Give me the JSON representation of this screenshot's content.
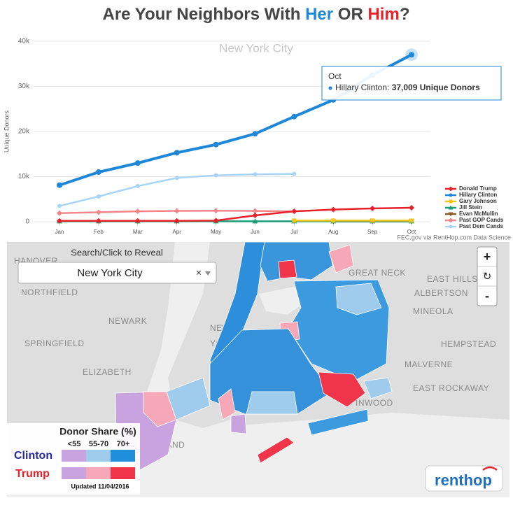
{
  "chart_data": {
    "type": "line",
    "title_parts": [
      "Are Your Neighbors With",
      "Her",
      "OR",
      "Him",
      "?"
    ],
    "subtitle": "New York City",
    "y_label": "Unique Donors",
    "source": "FEC.gov via RentHop.com Data Science",
    "categories": [
      "Jan",
      "Feb",
      "Mar",
      "Apr",
      "May",
      "Jun",
      "Jul",
      "Aug",
      "Sep",
      "Oct"
    ],
    "ylim": [
      0,
      40000
    ],
    "yticks": [
      0,
      {
        "value": 10000,
        "label": "10k"
      },
      {
        "value": 20000,
        "label": "20k"
      },
      {
        "value": 30000,
        "label": "30k"
      },
      {
        "value": 40000,
        "label": "40k"
      }
    ],
    "grid": true,
    "series": [
      {
        "name": "Donald Trump",
        "color": "#e8202a",
        "marker": "diamond",
        "values": [
          200,
          200,
          200,
          200,
          250,
          1400,
          2300,
          2700,
          2950,
          3100
        ]
      },
      {
        "name": "Hillary Clinton",
        "color": "#1f87d8",
        "marker": "circle",
        "values": [
          8100,
          11000,
          13000,
          15300,
          17100,
          19500,
          23300,
          27000,
          32500,
          37009
        ]
      },
      {
        "name": "Gary Johnson",
        "color": "#f5c518",
        "marker": "square",
        "values": [
          null,
          null,
          null,
          null,
          null,
          null,
          250,
          250,
          250,
          250
        ]
      },
      {
        "name": "Jill Stein",
        "color": "#1a9e77",
        "marker": "triangle",
        "values": [
          100,
          100,
          100,
          100,
          100,
          100,
          100,
          100,
          100,
          100
        ]
      },
      {
        "name": "Evan McMullin",
        "color": "#8b5a2b",
        "marker": "triangle-down",
        "values": [
          null,
          null,
          null,
          null,
          null,
          null,
          null,
          50,
          50,
          50
        ]
      },
      {
        "name": "Past GOP Cands",
        "color": "#f4868a",
        "marker": "diamond",
        "values": [
          1900,
          2100,
          2300,
          2400,
          2450,
          2400,
          2300,
          null,
          null,
          null
        ]
      },
      {
        "name": "Past Dem Cands",
        "color": "#a8d4f5",
        "marker": "circle",
        "values": [
          3500,
          5600,
          7900,
          9700,
          10300,
          10500,
          10600,
          null,
          null,
          null
        ]
      }
    ],
    "tooltip": {
      "header": "Oct",
      "label": "Hillary Clinton:",
      "value": "37,009 Unique Donors"
    }
  },
  "map": {
    "search_label": "Search/Click to Reveal",
    "search_value": "New York City",
    "clear": "×",
    "zoom_in": "+",
    "reset": "↻",
    "zoom_out": "-",
    "place_labels": [
      "HANOVER",
      "NORTHFIELD",
      "NEWARK",
      "SPRINGFIELD",
      "ELIZABETH",
      "NEW",
      "YORK",
      "GREAT NECK",
      "EAST HILLS",
      "ALBERTSON",
      "MINEOLA",
      "HEMPSTEAD",
      "MALVERNE",
      "EAST ROCKAWAY",
      "INWOOD",
      "N ISLAND"
    ],
    "legend": {
      "title": "Donor Share (%)",
      "columns": [
        "<55",
        "55-70",
        "70+"
      ],
      "rows": [
        "Clinton",
        "Trump"
      ],
      "updated": "Updated 11/04/2016"
    },
    "logo": "renthop"
  }
}
